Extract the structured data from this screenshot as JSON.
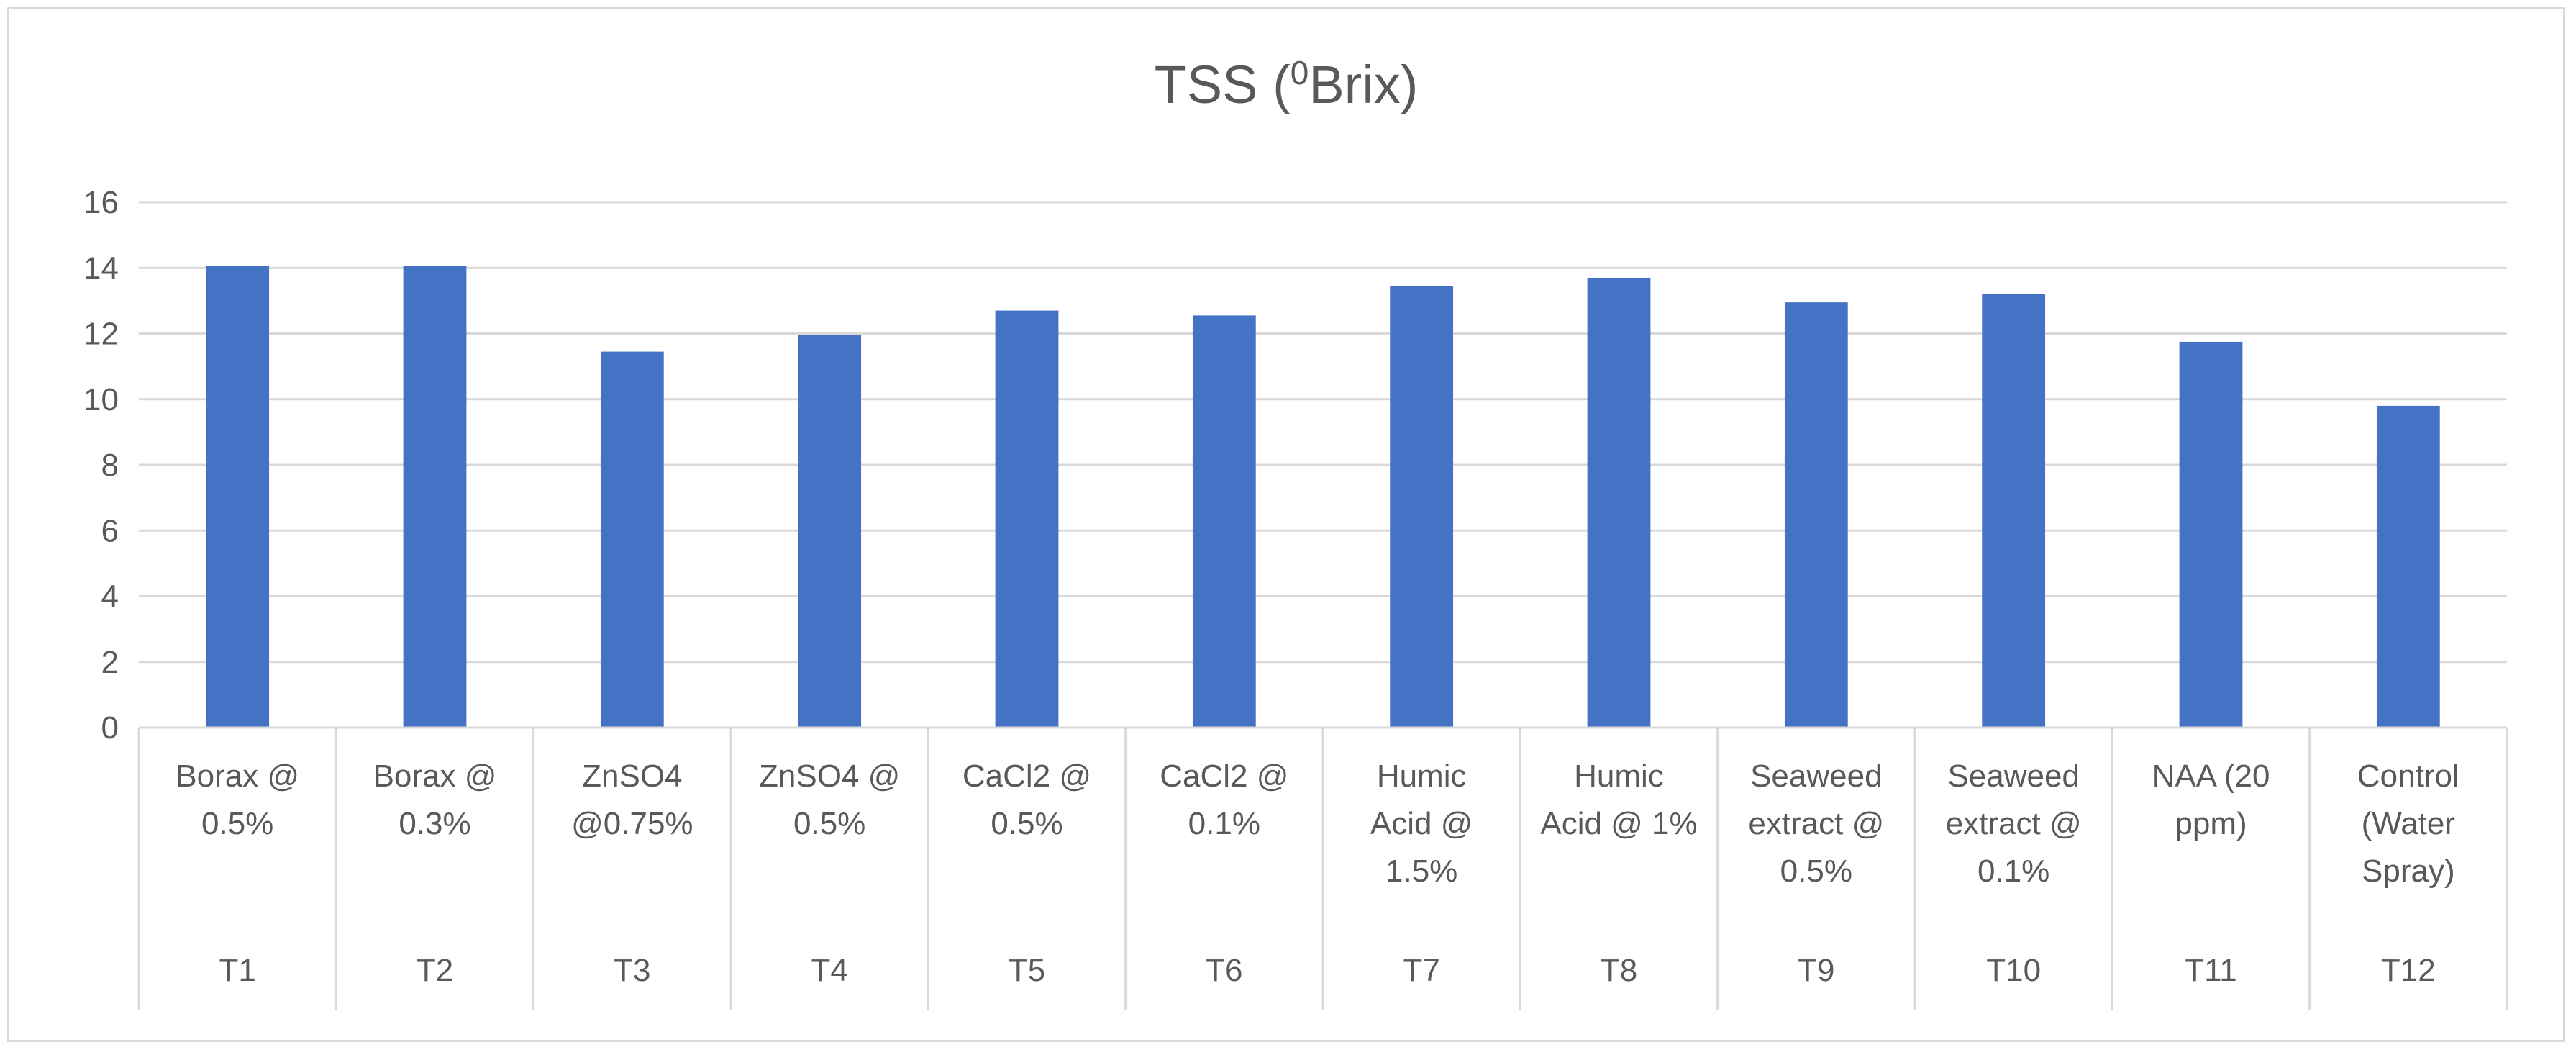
{
  "chart_data": {
    "type": "bar",
    "title": "TSS (",
    "title_superscript": "0",
    "title_suffix": "Brix)",
    "xlabel": "",
    "ylabel": "",
    "ylim": [
      0,
      16
    ],
    "y_ticks": [
      "0",
      "2",
      "4",
      "6",
      "8",
      "10",
      "12",
      "14",
      "16"
    ],
    "grid": true,
    "bar_color": "#4472c4",
    "categories": [
      {
        "code": "T1",
        "label_lines": [
          "Borax @",
          "0.5%"
        ]
      },
      {
        "code": "T2",
        "label_lines": [
          "Borax @",
          "0.3%"
        ]
      },
      {
        "code": "T3",
        "label_lines": [
          "ZnSO4",
          "@0.75%"
        ]
      },
      {
        "code": "T4",
        "label_lines": [
          "ZnSO4 @",
          "0.5%"
        ]
      },
      {
        "code": "T5",
        "label_lines": [
          "CaCl2 @",
          "0.5%"
        ]
      },
      {
        "code": "T6",
        "label_lines": [
          "CaCl2 @",
          "0.1%"
        ]
      },
      {
        "code": "T7",
        "label_lines": [
          "Humic",
          "Acid @",
          "1.5%"
        ]
      },
      {
        "code": "T8",
        "label_lines": [
          "Humic",
          "Acid @ 1%"
        ]
      },
      {
        "code": "T9",
        "label_lines": [
          "Seaweed",
          "extract @",
          "0.5%"
        ]
      },
      {
        "code": "T10",
        "label_lines": [
          "Seaweed",
          "extract @",
          "0.1%"
        ]
      },
      {
        "code": "T11",
        "label_lines": [
          "NAA (20",
          "ppm)"
        ]
      },
      {
        "code": "T12",
        "label_lines": [
          "Control",
          "(Water",
          "Spray)"
        ]
      }
    ],
    "values": [
      14.05,
      14.05,
      11.45,
      11.95,
      12.7,
      12.55,
      13.45,
      13.7,
      12.95,
      13.2,
      11.75,
      9.8
    ]
  }
}
